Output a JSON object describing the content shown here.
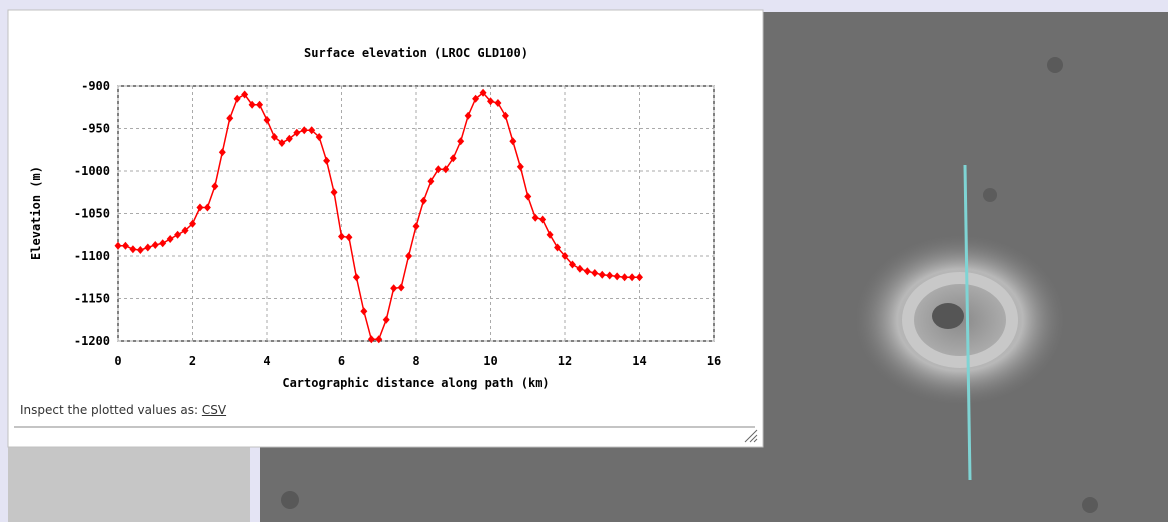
{
  "chart_data": {
    "type": "line",
    "title": "Surface elevation (LROC GLD100)",
    "xlabel": "Cartographic distance along path (km)",
    "ylabel": "Elevation (m)",
    "xlim": [
      0,
      16
    ],
    "xticks": [
      0,
      2,
      4,
      6,
      8,
      10,
      12,
      14,
      16
    ],
    "ylim": [
      -1200,
      -900
    ],
    "yticks": [
      -900,
      -950,
      -1000,
      -1050,
      -1100,
      -1150,
      -1200
    ],
    "grid": true,
    "series": [
      {
        "color": "#ff0000",
        "x": [
          0,
          0.2,
          0.4,
          0.6,
          0.8,
          1.0,
          1.2,
          1.4,
          1.6,
          1.8,
          2.0,
          2.2,
          2.4,
          2.6,
          2.8,
          3.0,
          3.2,
          3.4,
          3.6,
          3.8,
          4.0,
          4.2,
          4.4,
          4.6,
          4.8,
          5.0,
          5.2,
          5.4,
          5.6,
          5.8,
          6.0,
          6.2,
          6.4,
          6.6,
          6.8,
          7.0,
          7.2,
          7.4,
          7.6,
          7.8,
          8.0,
          8.2,
          8.4,
          8.6,
          8.8,
          9.0,
          9.2,
          9.4,
          9.6,
          9.8,
          10.0,
          10.2,
          10.4,
          10.6,
          10.8,
          11.0,
          11.2,
          11.4,
          11.6,
          11.8,
          12.0,
          12.2,
          12.4,
          12.6,
          12.8,
          13.0,
          13.2,
          13.4,
          13.6,
          13.8,
          14.0
        ],
        "values": [
          -1088,
          -1088,
          -1092,
          -1093,
          -1090,
          -1087,
          -1085,
          -1080,
          -1075,
          -1070,
          -1062,
          -1043,
          -1043,
          -1018,
          -978,
          -938,
          -915,
          -910,
          -922,
          -922,
          -940,
          -960,
          -967,
          -962,
          -955,
          -952,
          -952,
          -960,
          -988,
          -1025,
          -1077,
          -1078,
          -1125,
          -1165,
          -1198,
          -1198,
          -1175,
          -1138,
          -1137,
          -1100,
          -1065,
          -1035,
          -1012,
          -998,
          -998,
          -985,
          -965,
          -935,
          -915,
          -908,
          -918,
          -920,
          -935,
          -965,
          -995,
          -1030,
          -1055,
          -1057,
          -1075,
          -1090,
          -1100,
          -1110,
          -1115,
          -1118,
          -1120,
          -1122,
          -1123,
          -1124,
          -1125,
          -1125,
          -1125
        ]
      }
    ]
  },
  "footer": {
    "text": "Inspect the plotted values as:",
    "link": "CSV"
  }
}
